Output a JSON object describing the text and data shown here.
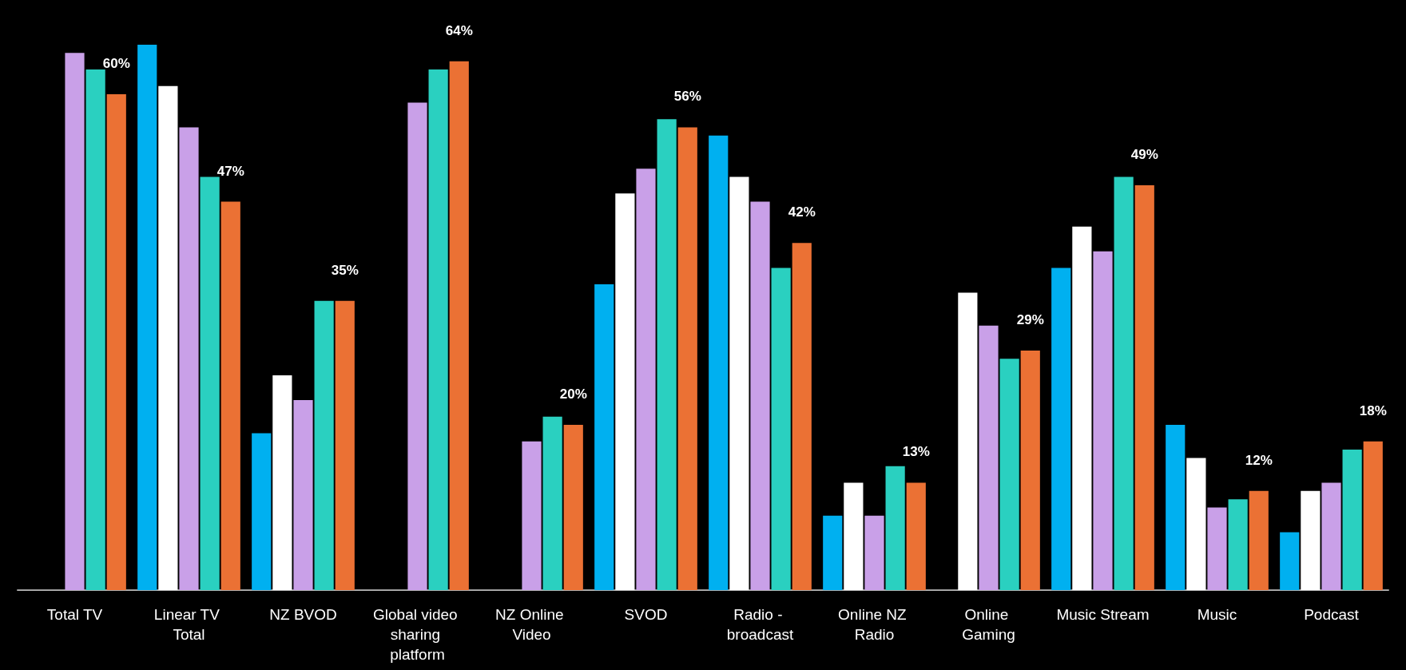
{
  "chart_data": {
    "type": "bar",
    "categories": [
      "Total TV",
      "Linear TV Total",
      "NZ BVOD",
      "Global video sharing platform",
      "NZ Online Video",
      "SVOD",
      "Radio - broadcast",
      "Online NZ Radio",
      "Online Gaming",
      "Music Stream",
      "Music",
      "Podcast"
    ],
    "series": [
      {
        "color": "#00b0f0",
        "values": [
          null,
          66,
          19,
          null,
          null,
          37,
          55,
          9,
          null,
          39,
          20,
          7
        ]
      },
      {
        "color": "#ffffff",
        "values": [
          null,
          61,
          26,
          null,
          null,
          48,
          50,
          13,
          36,
          44,
          16,
          12
        ]
      },
      {
        "color": "#c9a0e8",
        "values": [
          65,
          56,
          23,
          59,
          18,
          51,
          47,
          9,
          32,
          41,
          10,
          13
        ]
      },
      {
        "color": "#2ad0c0",
        "values": [
          63,
          50,
          35,
          63,
          21,
          57,
          39,
          15,
          28,
          50,
          11,
          17
        ]
      },
      {
        "color": "#eb7134",
        "values": [
          60,
          47,
          35,
          64,
          20,
          56,
          42,
          13,
          29,
          49,
          12,
          18
        ],
        "value_labels": [
          "60%",
          "47%",
          "35%",
          "64%",
          "20%",
          "56%",
          "42%",
          "13%",
          "29%",
          "49%",
          "12%",
          "18%"
        ]
      }
    ],
    "ylim": [
      0,
      66
    ]
  }
}
